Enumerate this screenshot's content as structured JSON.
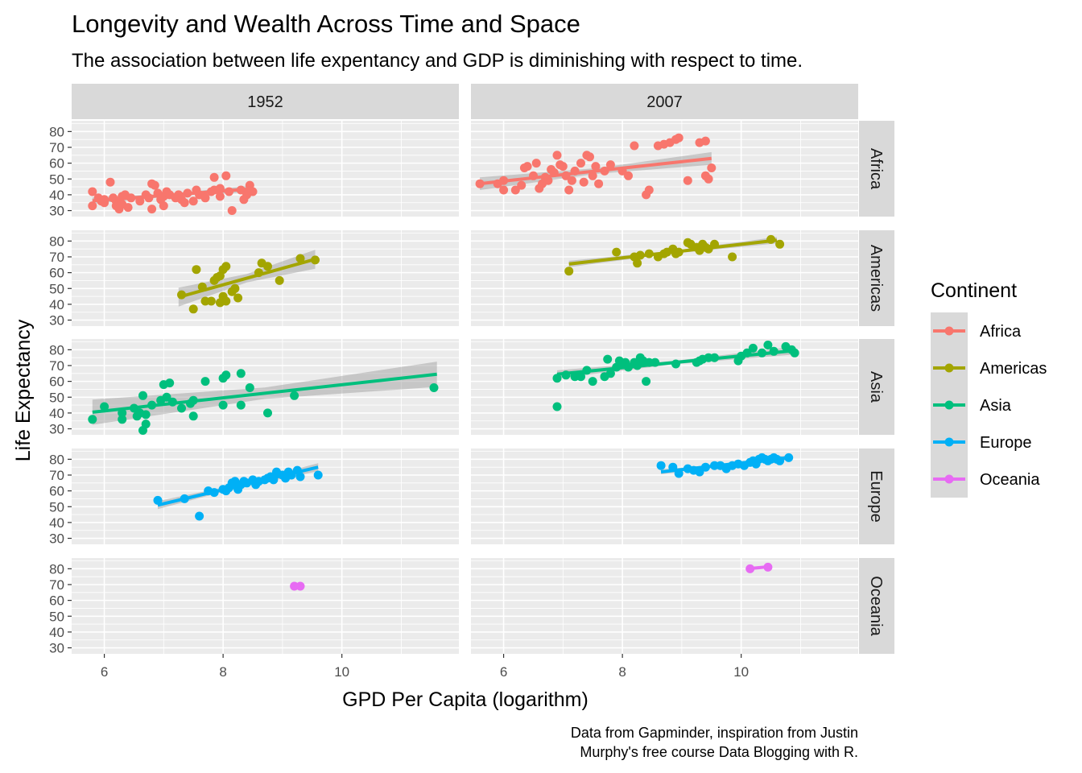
{
  "chart_data": {
    "type": "scatter",
    "title": "Longevity and Wealth Across Time and Space",
    "subtitle": "The association between life expentancy and GDP is diminishing with respect to time.",
    "xlabel": "GPD Per Capita (logarithm)",
    "ylabel": "Life Expectancy",
    "caption": [
      "Data from Gapminder, inspiration from Justin",
      "Murphy's free course Data Blogging with R."
    ],
    "legend_title": "Continent",
    "legend_position": "right",
    "columns": [
      "1952",
      "2007"
    ],
    "rows": [
      "Africa",
      "Americas",
      "Asia",
      "Europe",
      "Oceania"
    ],
    "xlim": [
      5.45,
      11.97
    ],
    "ylim": [
      26.2,
      86.8
    ],
    "x_ticks": [
      6,
      8,
      10
    ],
    "y_ticks": [
      30,
      40,
      50,
      60,
      70,
      80
    ],
    "grid": true,
    "colors": {
      "Africa": "#F8766D",
      "Americas": "#A3A500",
      "Asia": "#00BF7D",
      "Europe": "#00B0F6",
      "Oceania": "#E76BF3",
      "panel_bg": "#EBEBEB",
      "strip_bg": "#D9D9D9",
      "band": "#999999"
    },
    "panels": [
      {
        "continent": "Africa",
        "year": "1952",
        "points": [
          [
            5.8,
            42
          ],
          [
            5.8,
            33
          ],
          [
            5.9,
            38
          ],
          [
            5.95,
            36
          ],
          [
            6.0,
            35
          ],
          [
            6.0,
            37
          ],
          [
            6.1,
            48
          ],
          [
            6.15,
            38
          ],
          [
            6.2,
            36
          ],
          [
            6.2,
            33
          ],
          [
            6.25,
            31
          ],
          [
            6.3,
            34
          ],
          [
            6.3,
            39
          ],
          [
            6.35,
            40
          ],
          [
            6.4,
            32
          ],
          [
            6.45,
            38
          ],
          [
            6.6,
            36
          ],
          [
            6.7,
            40
          ],
          [
            6.75,
            38
          ],
          [
            6.8,
            31
          ],
          [
            6.8,
            47
          ],
          [
            6.85,
            46
          ],
          [
            6.9,
            41
          ],
          [
            6.95,
            37
          ],
          [
            7.0,
            39
          ],
          [
            7.0,
            33
          ],
          [
            7.05,
            42
          ],
          [
            7.1,
            40
          ],
          [
            7.2,
            38
          ],
          [
            7.25,
            40
          ],
          [
            7.3,
            37
          ],
          [
            7.35,
            35
          ],
          [
            7.4,
            41
          ],
          [
            7.5,
            36
          ],
          [
            7.55,
            43
          ],
          [
            7.6,
            40
          ],
          [
            7.7,
            38
          ],
          [
            7.8,
            42
          ],
          [
            7.85,
            43
          ],
          [
            7.95,
            44
          ],
          [
            8.1,
            42
          ],
          [
            8.3,
            43
          ],
          [
            8.4,
            40
          ],
          [
            8.5,
            42
          ],
          [
            7.85,
            51
          ],
          [
            8.05,
            52
          ],
          [
            8.35,
            37
          ],
          [
            8.45,
            46
          ],
          [
            8.15,
            30
          ],
          [
            7.95,
            39
          ]
        ],
        "fit": [
          5.8,
          36.2,
          8.5,
          43.8
        ],
        "band": 2.0
      },
      {
        "continent": "Africa",
        "year": "2007",
        "points": [
          [
            5.6,
            47
          ],
          [
            5.9,
            47
          ],
          [
            6.0,
            43
          ],
          [
            6.0,
            49
          ],
          [
            6.2,
            43
          ],
          [
            6.3,
            46
          ],
          [
            6.35,
            57
          ],
          [
            6.4,
            58
          ],
          [
            6.5,
            52
          ],
          [
            6.55,
            60
          ],
          [
            6.6,
            44
          ],
          [
            6.65,
            47
          ],
          [
            6.7,
            51
          ],
          [
            6.75,
            49
          ],
          [
            6.8,
            56
          ],
          [
            6.85,
            54
          ],
          [
            6.9,
            65
          ],
          [
            6.95,
            59
          ],
          [
            7.0,
            58
          ],
          [
            7.05,
            52
          ],
          [
            7.1,
            43
          ],
          [
            7.15,
            49
          ],
          [
            7.2,
            55
          ],
          [
            7.3,
            60
          ],
          [
            7.35,
            48
          ],
          [
            7.4,
            65
          ],
          [
            7.45,
            64
          ],
          [
            7.5,
            52
          ],
          [
            7.55,
            58
          ],
          [
            7.6,
            47
          ],
          [
            7.7,
            55
          ],
          [
            7.8,
            59
          ],
          [
            8.0,
            55
          ],
          [
            8.1,
            52
          ],
          [
            8.2,
            71
          ],
          [
            8.4,
            40
          ],
          [
            8.45,
            43
          ],
          [
            8.6,
            71
          ],
          [
            8.7,
            72
          ],
          [
            8.8,
            73
          ],
          [
            8.9,
            75
          ],
          [
            8.95,
            76
          ],
          [
            9.1,
            49
          ],
          [
            9.3,
            73
          ],
          [
            9.4,
            74
          ],
          [
            9.4,
            52
          ],
          [
            9.5,
            57
          ],
          [
            9.45,
            50
          ]
        ],
        "fit": [
          5.6,
          47.0,
          9.5,
          63.0
        ],
        "band": 4.0
      },
      {
        "continent": "Americas",
        "year": "1952",
        "points": [
          [
            7.3,
            46
          ],
          [
            7.5,
            37
          ],
          [
            7.55,
            62
          ],
          [
            7.65,
            51
          ],
          [
            7.7,
            42
          ],
          [
            7.8,
            42
          ],
          [
            7.85,
            55
          ],
          [
            7.9,
            57
          ],
          [
            7.95,
            58
          ],
          [
            7.95,
            41
          ],
          [
            8.0,
            62
          ],
          [
            8.05,
            64
          ],
          [
            8.0,
            45
          ],
          [
            8.05,
            42
          ],
          [
            8.15,
            48
          ],
          [
            8.2,
            50
          ],
          [
            8.25,
            44
          ],
          [
            8.6,
            60
          ],
          [
            8.65,
            66
          ],
          [
            8.75,
            64
          ],
          [
            8.95,
            55
          ],
          [
            9.3,
            69
          ],
          [
            9.55,
            68
          ]
        ],
        "fit": [
          7.25,
          44.5,
          9.55,
          68.5
        ],
        "band": 6.0
      },
      {
        "continent": "Americas",
        "year": "2007",
        "points": [
          [
            7.1,
            61
          ],
          [
            7.9,
            73
          ],
          [
            8.2,
            70
          ],
          [
            8.25,
            66
          ],
          [
            8.3,
            71
          ],
          [
            8.45,
            72
          ],
          [
            8.6,
            70
          ],
          [
            8.7,
            72
          ],
          [
            8.75,
            73
          ],
          [
            8.85,
            75
          ],
          [
            8.9,
            72
          ],
          [
            8.95,
            73
          ],
          [
            9.1,
            79
          ],
          [
            9.15,
            78
          ],
          [
            9.25,
            76
          ],
          [
            9.3,
            74
          ],
          [
            9.35,
            78
          ],
          [
            9.4,
            76
          ],
          [
            9.45,
            75
          ],
          [
            9.55,
            78
          ],
          [
            9.85,
            70
          ],
          [
            10.5,
            81
          ],
          [
            10.65,
            78
          ]
        ],
        "fit": [
          7.1,
          65.5,
          10.6,
          80.5
        ],
        "band": 2.0
      },
      {
        "continent": "Asia",
        "year": "1952",
        "points": [
          [
            5.8,
            36
          ],
          [
            6.0,
            44
          ],
          [
            6.3,
            36
          ],
          [
            6.3,
            40
          ],
          [
            6.5,
            43
          ],
          [
            6.55,
            38
          ],
          [
            6.6,
            40
          ],
          [
            6.65,
            51
          ],
          [
            6.65,
            29
          ],
          [
            6.7,
            33
          ],
          [
            6.7,
            39
          ],
          [
            6.8,
            45
          ],
          [
            6.95,
            48
          ],
          [
            7.0,
            58
          ],
          [
            7.05,
            50
          ],
          [
            7.1,
            59
          ],
          [
            7.15,
            47
          ],
          [
            7.3,
            43
          ],
          [
            7.45,
            46
          ],
          [
            7.5,
            38
          ],
          [
            7.5,
            48
          ],
          [
            7.7,
            60
          ],
          [
            8.0,
            45
          ],
          [
            8.0,
            62
          ],
          [
            8.05,
            64
          ],
          [
            8.3,
            45
          ],
          [
            8.3,
            65
          ],
          [
            8.45,
            56
          ],
          [
            8.75,
            40
          ],
          [
            9.2,
            51
          ],
          [
            11.55,
            56
          ]
        ],
        "fit": [
          5.8,
          40.5,
          11.6,
          64.5
        ],
        "band": 8.0
      },
      {
        "continent": "Asia",
        "year": "2007",
        "points": [
          [
            6.9,
            44
          ],
          [
            6.9,
            62
          ],
          [
            7.05,
            64
          ],
          [
            7.2,
            63
          ],
          [
            7.3,
            63
          ],
          [
            7.4,
            67
          ],
          [
            7.5,
            60
          ],
          [
            7.7,
            63
          ],
          [
            7.75,
            74
          ],
          [
            7.8,
            65
          ],
          [
            7.9,
            69
          ],
          [
            7.95,
            73
          ],
          [
            8.0,
            71
          ],
          [
            8.05,
            72
          ],
          [
            8.1,
            69
          ],
          [
            8.2,
            72
          ],
          [
            8.25,
            70
          ],
          [
            8.3,
            75
          ],
          [
            8.35,
            73
          ],
          [
            8.4,
            60
          ],
          [
            8.45,
            72
          ],
          [
            8.55,
            72
          ],
          [
            8.9,
            71
          ],
          [
            9.25,
            72
          ],
          [
            9.3,
            73
          ],
          [
            9.35,
            74
          ],
          [
            9.45,
            75
          ],
          [
            9.55,
            75
          ],
          [
            9.95,
            73
          ],
          [
            10.0,
            76
          ],
          [
            10.1,
            78
          ],
          [
            10.2,
            81
          ],
          [
            10.35,
            78
          ],
          [
            10.45,
            83
          ],
          [
            10.55,
            79
          ],
          [
            10.75,
            82
          ],
          [
            10.85,
            80
          ],
          [
            10.9,
            78
          ]
        ],
        "fit": [
          6.9,
          64.5,
          10.9,
          79.5
        ],
        "band": 2.5
      },
      {
        "continent": "Europe",
        "year": "1952",
        "points": [
          [
            6.9,
            54
          ],
          [
            7.35,
            55
          ],
          [
            7.6,
            44
          ],
          [
            7.75,
            60
          ],
          [
            7.85,
            59
          ],
          [
            8.0,
            61
          ],
          [
            8.05,
            60
          ],
          [
            8.1,
            62
          ],
          [
            8.15,
            65
          ],
          [
            8.2,
            66
          ],
          [
            8.25,
            61
          ],
          [
            8.3,
            64
          ],
          [
            8.35,
            66
          ],
          [
            8.4,
            65
          ],
          [
            8.5,
            67
          ],
          [
            8.55,
            64
          ],
          [
            8.6,
            66
          ],
          [
            8.7,
            67
          ],
          [
            8.75,
            68
          ],
          [
            8.8,
            69
          ],
          [
            8.85,
            67
          ],
          [
            8.9,
            72
          ],
          [
            9.0,
            70
          ],
          [
            9.05,
            68
          ],
          [
            9.1,
            72
          ],
          [
            9.15,
            70
          ],
          [
            9.25,
            73
          ],
          [
            9.3,
            69
          ],
          [
            9.6,
            70
          ]
        ],
        "fit": [
          6.9,
          51.0,
          9.6,
          75.0
        ],
        "band": 2.5
      },
      {
        "continent": "Europe",
        "year": "2007",
        "points": [
          [
            8.65,
            76
          ],
          [
            8.85,
            75
          ],
          [
            8.95,
            71
          ],
          [
            9.1,
            74
          ],
          [
            9.2,
            73
          ],
          [
            9.3,
            72
          ],
          [
            9.4,
            75
          ],
          [
            9.55,
            76
          ],
          [
            9.65,
            76
          ],
          [
            9.75,
            74
          ],
          [
            9.85,
            76
          ],
          [
            9.95,
            77
          ],
          [
            10.05,
            76
          ],
          [
            10.15,
            78
          ],
          [
            10.2,
            79
          ],
          [
            10.25,
            77
          ],
          [
            10.3,
            80
          ],
          [
            10.35,
            81
          ],
          [
            10.4,
            80
          ],
          [
            10.45,
            79
          ],
          [
            10.5,
            80
          ],
          [
            10.55,
            81
          ],
          [
            10.6,
            80
          ],
          [
            10.65,
            79
          ],
          [
            10.8,
            81
          ]
        ],
        "fit": [
          8.65,
          72.0,
          10.8,
          81.0
        ],
        "band": 1.5
      },
      {
        "continent": "Oceania",
        "year": "1952",
        "points": [
          [
            9.2,
            69
          ],
          [
            9.3,
            69
          ]
        ],
        "fit": [
          9.2,
          69.0,
          9.3,
          69.3
        ],
        "band": 0
      },
      {
        "continent": "Oceania",
        "year": "2007",
        "points": [
          [
            10.15,
            80
          ],
          [
            10.45,
            81
          ]
        ],
        "fit": [
          10.15,
          80.2,
          10.45,
          81.2
        ],
        "band": 0
      }
    ]
  }
}
